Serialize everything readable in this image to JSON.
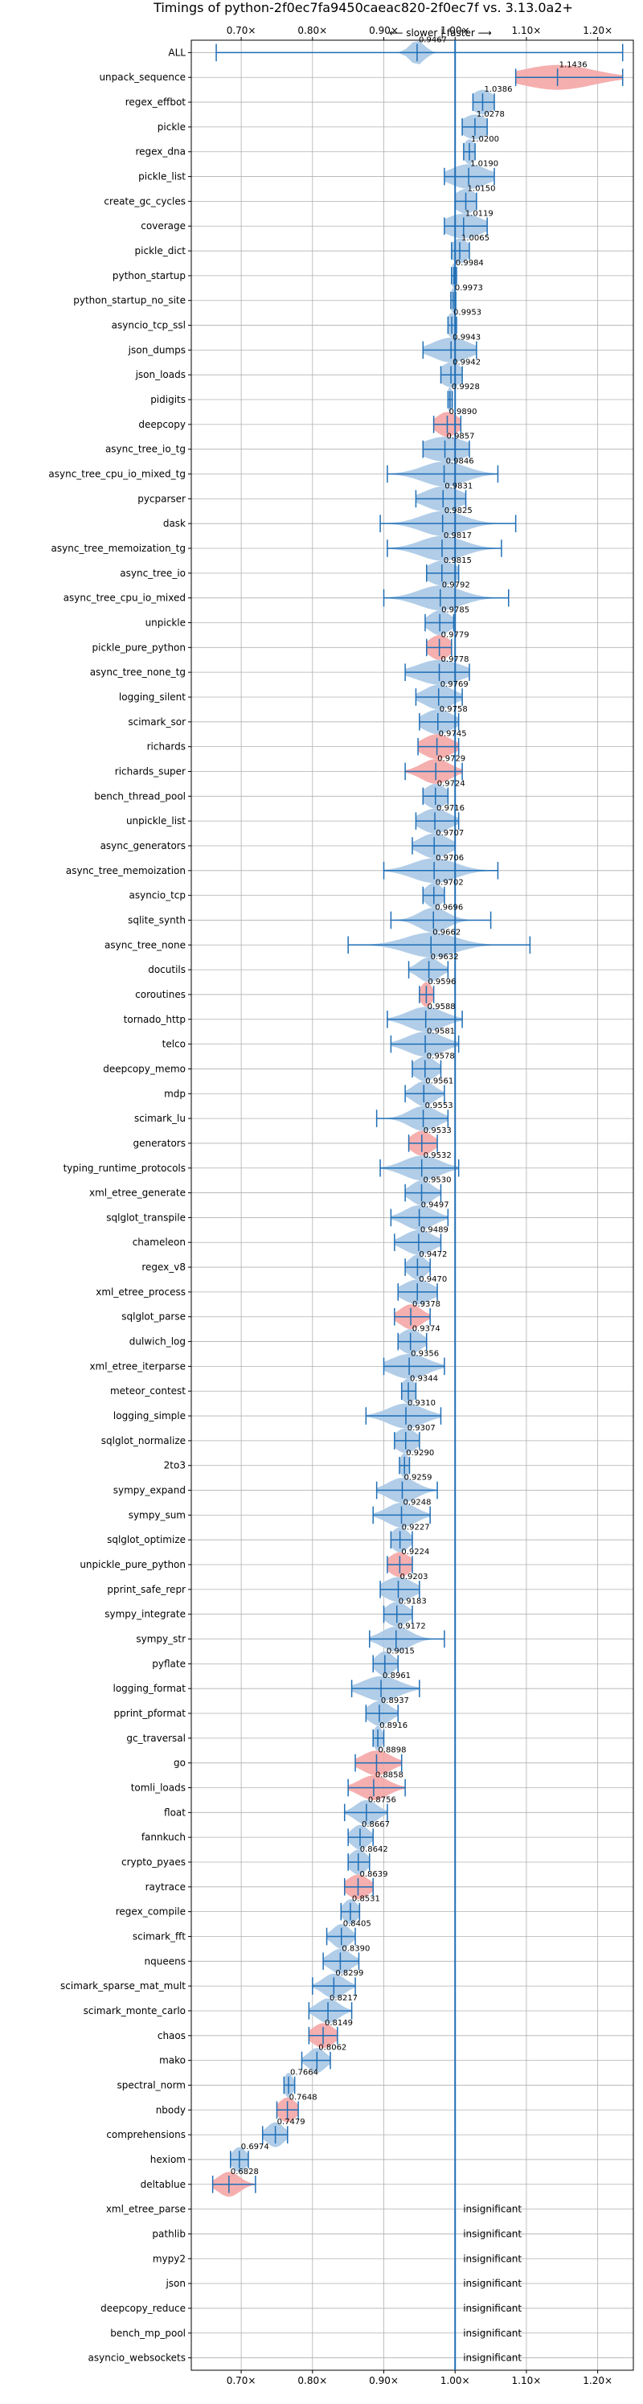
{
  "chart_data": {
    "type": "violin",
    "title": "Timings of python-2f0ec7fa9450caeac820-2f0ec7f vs. 3.13.0a2+",
    "xaxis_note": "⟵ slower | faster ⟶",
    "xlim": [
      0.63,
      1.25
    ],
    "x_ticks": [
      0.7,
      0.8,
      0.9,
      1.0,
      1.1,
      1.2
    ],
    "x_tick_labels": [
      "0.70×",
      "0.80×",
      "0.90×",
      "1.00×",
      "1.10×",
      "1.20×"
    ],
    "grid": true,
    "reference_line": 1.0,
    "colors": {
      "normal": "#a8c8e6",
      "slower_sig": "#f4a6a6",
      "line": "#1f6eb5",
      "grid": "#b0b0b0"
    },
    "benchmarks": [
      {
        "name": "ALL",
        "value": 0.9467,
        "label": "0.9467",
        "range": [
          0.665,
          1.235
        ],
        "spread": 0.01
      },
      {
        "name": "unpack_sequence",
        "value": 1.1436,
        "label": "1.1436",
        "range": [
          1.085,
          1.235
        ],
        "spread": 0.05,
        "highlight": true
      },
      {
        "name": "regex_effbot",
        "value": 1.0386,
        "label": "1.0386",
        "range": [
          1.025,
          1.055
        ],
        "spread": 0.015
      },
      {
        "name": "pickle",
        "value": 1.0278,
        "label": "1.0278",
        "range": [
          1.01,
          1.045
        ],
        "spread": 0.018
      },
      {
        "name": "regex_dna",
        "value": 1.02,
        "label": "1.0200",
        "range": [
          1.012,
          1.028
        ],
        "spread": 0.008
      },
      {
        "name": "pickle_list",
        "value": 1.019,
        "label": "1.0190",
        "range": [
          0.985,
          1.055
        ],
        "spread": 0.025
      },
      {
        "name": "create_gc_cycles",
        "value": 1.015,
        "label": "1.0150",
        "range": [
          1.0,
          1.03
        ],
        "spread": 0.015
      },
      {
        "name": "coverage",
        "value": 1.0119,
        "label": "1.0119",
        "range": [
          0.985,
          1.045
        ],
        "spread": 0.025
      },
      {
        "name": "pickle_dict",
        "value": 1.0065,
        "label": "1.0065",
        "range": [
          0.995,
          1.02
        ],
        "spread": 0.012
      },
      {
        "name": "python_startup",
        "value": 0.9984,
        "label": "0.9984",
        "range": [
          0.995,
          1.002
        ],
        "spread": 0.004
      },
      {
        "name": "python_startup_no_site",
        "value": 0.9973,
        "label": "0.9973",
        "range": [
          0.994,
          1.001
        ],
        "spread": 0.004
      },
      {
        "name": "asyncio_tcp_ssl",
        "value": 0.9953,
        "label": "0.9953",
        "range": [
          0.99,
          1.002
        ],
        "spread": 0.006
      },
      {
        "name": "json_dumps",
        "value": 0.9943,
        "label": "0.9943",
        "range": [
          0.955,
          1.03
        ],
        "spread": 0.025
      },
      {
        "name": "json_loads",
        "value": 0.9942,
        "label": "0.9942",
        "range": [
          0.98,
          1.01
        ],
        "spread": 0.015
      },
      {
        "name": "pidigits",
        "value": 0.9928,
        "label": "0.9928",
        "range": [
          0.99,
          0.996
        ],
        "spread": 0.003
      },
      {
        "name": "deepcopy",
        "value": 0.989,
        "label": "0.9890",
        "range": [
          0.97,
          1.008
        ],
        "spread": 0.015,
        "highlight": true
      },
      {
        "name": "async_tree_io_tg",
        "value": 0.9857,
        "label": "0.9857",
        "range": [
          0.955,
          1.02
        ],
        "spread": 0.03
      },
      {
        "name": "async_tree_cpu_io_mixed_tg",
        "value": 0.9846,
        "label": "0.9846",
        "range": [
          0.905,
          1.06
        ],
        "spread": 0.03
      },
      {
        "name": "pycparser",
        "value": 0.9831,
        "label": "0.9831",
        "range": [
          0.945,
          1.015
        ],
        "spread": 0.025
      },
      {
        "name": "dask",
        "value": 0.9825,
        "label": "0.9825",
        "range": [
          0.895,
          1.085
        ],
        "spread": 0.03
      },
      {
        "name": "async_tree_memoization_tg",
        "value": 0.9817,
        "label": "0.9817",
        "range": [
          0.905,
          1.065
        ],
        "spread": 0.03
      },
      {
        "name": "async_tree_io",
        "value": 0.9815,
        "label": "0.9815",
        "range": [
          0.96,
          1.005
        ],
        "spread": 0.02
      },
      {
        "name": "async_tree_cpu_io_mixed",
        "value": 0.9792,
        "label": "0.9792",
        "range": [
          0.9,
          1.075
        ],
        "spread": 0.03
      },
      {
        "name": "unpickle",
        "value": 0.9785,
        "label": "0.9785",
        "range": [
          0.958,
          0.998
        ],
        "spread": 0.015
      },
      {
        "name": "pickle_pure_python",
        "value": 0.9779,
        "label": "0.9779",
        "range": [
          0.96,
          0.995
        ],
        "spread": 0.015,
        "highlight": true
      },
      {
        "name": "async_tree_none_tg",
        "value": 0.9778,
        "label": "0.9778",
        "range": [
          0.93,
          1.02
        ],
        "spread": 0.03
      },
      {
        "name": "logging_silent",
        "value": 0.9769,
        "label": "0.9769",
        "range": [
          0.945,
          1.01
        ],
        "spread": 0.02
      },
      {
        "name": "scimark_sor",
        "value": 0.9758,
        "label": "0.9758",
        "range": [
          0.95,
          1.005
        ],
        "spread": 0.02
      },
      {
        "name": "richards",
        "value": 0.9745,
        "label": "0.9745",
        "range": [
          0.948,
          1.005
        ],
        "spread": 0.02,
        "highlight": true
      },
      {
        "name": "richards_super",
        "value": 0.9729,
        "label": "0.9729",
        "range": [
          0.93,
          1.01
        ],
        "spread": 0.02,
        "highlight": true
      },
      {
        "name": "bench_thread_pool",
        "value": 0.9724,
        "label": "0.9724",
        "range": [
          0.955,
          0.99
        ],
        "spread": 0.015
      },
      {
        "name": "unpickle_list",
        "value": 0.9716,
        "label": "0.9716",
        "range": [
          0.945,
          1.005
        ],
        "spread": 0.02
      },
      {
        "name": "async_generators",
        "value": 0.9707,
        "label": "0.9707",
        "range": [
          0.94,
          1.0
        ],
        "spread": 0.02
      },
      {
        "name": "async_tree_memoization",
        "value": 0.9706,
        "label": "0.9706",
        "range": [
          0.9,
          1.06
        ],
        "spread": 0.03
      },
      {
        "name": "asyncio_tcp",
        "value": 0.9702,
        "label": "0.9702",
        "range": [
          0.955,
          0.985
        ],
        "spread": 0.012
      },
      {
        "name": "sqlite_synth",
        "value": 0.9696,
        "label": "0.9696",
        "range": [
          0.91,
          1.05
        ],
        "spread": 0.02
      },
      {
        "name": "async_tree_none",
        "value": 0.9662,
        "label": "0.9662",
        "range": [
          0.85,
          1.105
        ],
        "spread": 0.035
      },
      {
        "name": "docutils",
        "value": 0.9632,
        "label": "0.9632",
        "range": [
          0.935,
          0.99
        ],
        "spread": 0.015
      },
      {
        "name": "coroutines",
        "value": 0.9596,
        "label": "0.9596",
        "range": [
          0.95,
          0.97
        ],
        "spread": 0.008,
        "highlight": true
      },
      {
        "name": "tornado_http",
        "value": 0.9588,
        "label": "0.9588",
        "range": [
          0.905,
          1.01
        ],
        "spread": 0.025
      },
      {
        "name": "telco",
        "value": 0.9581,
        "label": "0.9581",
        "range": [
          0.91,
          1.005
        ],
        "spread": 0.025
      },
      {
        "name": "deepcopy_memo",
        "value": 0.9578,
        "label": "0.9578",
        "range": [
          0.94,
          0.98
        ],
        "spread": 0.015
      },
      {
        "name": "mdp",
        "value": 0.9561,
        "label": "0.9561",
        "range": [
          0.93,
          0.985
        ],
        "spread": 0.015
      },
      {
        "name": "scimark_lu",
        "value": 0.9553,
        "label": "0.9553",
        "range": [
          0.89,
          0.99
        ],
        "spread": 0.02
      },
      {
        "name": "generators",
        "value": 0.9533,
        "label": "0.9533",
        "range": [
          0.935,
          0.975
        ],
        "spread": 0.015,
        "highlight": true
      },
      {
        "name": "typing_runtime_protocols",
        "value": 0.9532,
        "label": "0.9532",
        "range": [
          0.895,
          1.005
        ],
        "spread": 0.025
      },
      {
        "name": "xml_etree_generate",
        "value": 0.953,
        "label": "0.9530",
        "range": [
          0.93,
          0.98
        ],
        "spread": 0.015
      },
      {
        "name": "sqlglot_transpile",
        "value": 0.9497,
        "label": "0.9497",
        "range": [
          0.91,
          0.99
        ],
        "spread": 0.02
      },
      {
        "name": "chameleon",
        "value": 0.9489,
        "label": "0.9489",
        "range": [
          0.915,
          0.98
        ],
        "spread": 0.02
      },
      {
        "name": "regex_v8",
        "value": 0.9472,
        "label": "0.9472",
        "range": [
          0.93,
          0.965
        ],
        "spread": 0.012
      },
      {
        "name": "xml_etree_process",
        "value": 0.947,
        "label": "0.9470",
        "range": [
          0.92,
          0.975
        ],
        "spread": 0.02
      },
      {
        "name": "sqlglot_parse",
        "value": 0.9378,
        "label": "0.9378",
        "range": [
          0.915,
          0.965
        ],
        "spread": 0.015,
        "highlight": true
      },
      {
        "name": "dulwich_log",
        "value": 0.9374,
        "label": "0.9374",
        "range": [
          0.92,
          0.96
        ],
        "spread": 0.015
      },
      {
        "name": "xml_etree_iterparse",
        "value": 0.9356,
        "label": "0.9356",
        "range": [
          0.9,
          0.985
        ],
        "spread": 0.025
      },
      {
        "name": "meteor_contest",
        "value": 0.9344,
        "label": "0.9344",
        "range": [
          0.925,
          0.945
        ],
        "spread": 0.01
      },
      {
        "name": "logging_simple",
        "value": 0.931,
        "label": "0.9310",
        "range": [
          0.875,
          0.98
        ],
        "spread": 0.025
      },
      {
        "name": "sqlglot_normalize",
        "value": 0.9307,
        "label": "0.9307",
        "range": [
          0.915,
          0.95
        ],
        "spread": 0.015
      },
      {
        "name": "2to3",
        "value": 0.929,
        "label": "0.9290",
        "range": [
          0.922,
          0.936
        ],
        "spread": 0.006
      },
      {
        "name": "sympy_expand",
        "value": 0.9259,
        "label": "0.9259",
        "range": [
          0.89,
          0.975
        ],
        "spread": 0.02
      },
      {
        "name": "sympy_sum",
        "value": 0.9248,
        "label": "0.9248",
        "range": [
          0.885,
          0.965
        ],
        "spread": 0.02
      },
      {
        "name": "sqlglot_optimize",
        "value": 0.9227,
        "label": "0.9227",
        "range": [
          0.91,
          0.94
        ],
        "spread": 0.012
      },
      {
        "name": "unpickle_pure_python",
        "value": 0.9224,
        "label": "0.9224",
        "range": [
          0.905,
          0.94
        ],
        "spread": 0.015,
        "highlight": true
      },
      {
        "name": "pprint_safe_repr",
        "value": 0.9203,
        "label": "0.9203",
        "range": [
          0.895,
          0.95
        ],
        "spread": 0.02
      },
      {
        "name": "sympy_integrate",
        "value": 0.9183,
        "label": "0.9183",
        "range": [
          0.9,
          0.94
        ],
        "spread": 0.015
      },
      {
        "name": "sympy_str",
        "value": 0.9172,
        "label": "0.9172",
        "range": [
          0.88,
          0.985
        ],
        "spread": 0.02
      },
      {
        "name": "pyflate",
        "value": 0.9015,
        "label": "0.9015",
        "range": [
          0.885,
          0.92
        ],
        "spread": 0.012
      },
      {
        "name": "logging_format",
        "value": 0.8961,
        "label": "0.8961",
        "range": [
          0.855,
          0.95
        ],
        "spread": 0.025
      },
      {
        "name": "pprint_pformat",
        "value": 0.8937,
        "label": "0.8937",
        "range": [
          0.875,
          0.92
        ],
        "spread": 0.015
      },
      {
        "name": "gc_traversal",
        "value": 0.8916,
        "label": "0.8916",
        "range": [
          0.885,
          0.9
        ],
        "spread": 0.006
      },
      {
        "name": "go",
        "value": 0.8898,
        "label": "0.8898",
        "range": [
          0.86,
          0.925
        ],
        "spread": 0.02,
        "highlight": true
      },
      {
        "name": "tomli_loads",
        "value": 0.8858,
        "label": "0.8858",
        "range": [
          0.85,
          0.93
        ],
        "spread": 0.02,
        "highlight": true
      },
      {
        "name": "float",
        "value": 0.8756,
        "label": "0.8756",
        "range": [
          0.845,
          0.905
        ],
        "spread": 0.015
      },
      {
        "name": "fannkuch",
        "value": 0.8667,
        "label": "0.8667",
        "range": [
          0.85,
          0.885
        ],
        "spread": 0.012
      },
      {
        "name": "crypto_pyaes",
        "value": 0.8642,
        "label": "0.8642",
        "range": [
          0.85,
          0.88
        ],
        "spread": 0.012
      },
      {
        "name": "raytrace",
        "value": 0.8639,
        "label": "0.8639",
        "range": [
          0.845,
          0.885
        ],
        "spread": 0.015,
        "highlight": true
      },
      {
        "name": "regex_compile",
        "value": 0.8531,
        "label": "0.8531",
        "range": [
          0.84,
          0.866
        ],
        "spread": 0.01
      },
      {
        "name": "scimark_fft",
        "value": 0.8405,
        "label": "0.8405",
        "range": [
          0.82,
          0.86
        ],
        "spread": 0.012
      },
      {
        "name": "nqueens",
        "value": 0.839,
        "label": "0.8390",
        "range": [
          0.815,
          0.865
        ],
        "spread": 0.015
      },
      {
        "name": "scimark_sparse_mat_mult",
        "value": 0.8299,
        "label": "0.8299",
        "range": [
          0.8,
          0.86
        ],
        "spread": 0.015
      },
      {
        "name": "scimark_monte_carlo",
        "value": 0.8217,
        "label": "0.8217",
        "range": [
          0.795,
          0.855
        ],
        "spread": 0.015
      },
      {
        "name": "chaos",
        "value": 0.8149,
        "label": "0.8149",
        "range": [
          0.795,
          0.835
        ],
        "spread": 0.015,
        "highlight": true
      },
      {
        "name": "mako",
        "value": 0.8062,
        "label": "0.8062",
        "range": [
          0.785,
          0.825
        ],
        "spread": 0.012
      },
      {
        "name": "spectral_norm",
        "value": 0.7664,
        "label": "0.7664",
        "range": [
          0.76,
          0.775
        ],
        "spread": 0.006
      },
      {
        "name": "nbody",
        "value": 0.7648,
        "label": "0.7648",
        "range": [
          0.75,
          0.78
        ],
        "spread": 0.012,
        "highlight": true
      },
      {
        "name": "comprehensions",
        "value": 0.7479,
        "label": "0.7479",
        "range": [
          0.73,
          0.765
        ],
        "spread": 0.012
      },
      {
        "name": "hexiom",
        "value": 0.6974,
        "label": "0.6974",
        "range": [
          0.685,
          0.71
        ],
        "spread": 0.01
      },
      {
        "name": "deltablue",
        "value": 0.6828,
        "label": "0.6828",
        "range": [
          0.66,
          0.72
        ],
        "spread": 0.015,
        "highlight": true
      },
      {
        "name": "xml_etree_parse",
        "insignificant": true
      },
      {
        "name": "pathlib",
        "insignificant": true
      },
      {
        "name": "mypy2",
        "insignificant": true
      },
      {
        "name": "json",
        "insignificant": true
      },
      {
        "name": "deepcopy_reduce",
        "insignificant": true
      },
      {
        "name": "bench_mp_pool",
        "insignificant": true
      },
      {
        "name": "asyncio_websockets",
        "insignificant": true
      }
    ],
    "insignificant_label": "insignificant"
  }
}
